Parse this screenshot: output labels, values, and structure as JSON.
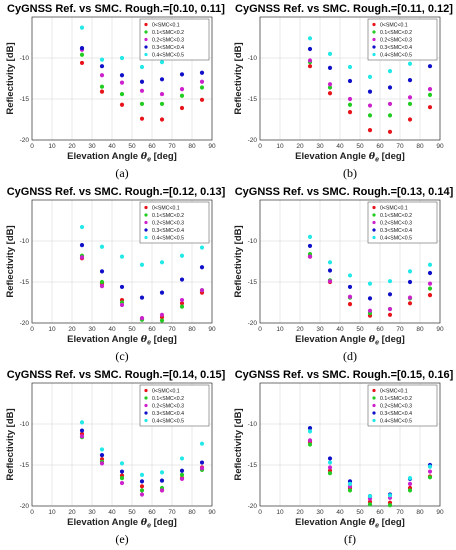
{
  "chart_data": [
    {
      "type": "scatter",
      "title": "CyGNSS Ref. vs SMC. Rough.=[0.10, 0.11]",
      "caption": "(a)",
      "xlabel_main": "Elevation Angle ",
      "xlabel_symbol": "θ",
      "xlabel_sub": "e",
      "xlabel_unit": " [deg]",
      "ylabel": "Reflectivity [dB]",
      "xlim": [
        0,
        90
      ],
      "ylim": [
        -20,
        -5
      ],
      "xticks": [
        "0",
        "10",
        "20",
        "30",
        "40",
        "50",
        "60",
        "70",
        "80",
        "90"
      ],
      "yticks": [
        "-20",
        "-15",
        "-10"
      ],
      "grid": true,
      "legend_position": "top-right",
      "x": [
        25,
        35,
        45,
        55,
        65,
        75,
        85
      ],
      "series": [
        {
          "name": "0<SMC<0.1",
          "color": "#e8141c",
          "values": [
            -10.6,
            -14.1,
            -15.7,
            -17.4,
            -17.5,
            -16.1,
            -15.1
          ]
        },
        {
          "name": "0.1<SMC<0.2",
          "color": "#22cc22",
          "values": [
            -9.6,
            -13.5,
            -14.4,
            -15.6,
            -15.6,
            -14.6,
            -13.6
          ]
        },
        {
          "name": "0.2<SMC<0.3",
          "color": "#cc22cc",
          "values": [
            -9.0,
            -12.1,
            -13.0,
            -14.0,
            -14.4,
            -13.8,
            -12.9
          ]
        },
        {
          "name": "0.3<SMC<0.4",
          "color": "#1010c8",
          "values": [
            -8.8,
            -11.0,
            -12.1,
            -12.9,
            -12.6,
            -12.0,
            -11.8
          ]
        },
        {
          "name": "0.4<SMC<0.5",
          "color": "#22e8e8",
          "values": [
            -6.3,
            -10.2,
            -10.0,
            -11.1,
            -10.5,
            -9.7,
            -9.6
          ]
        }
      ]
    },
    {
      "type": "scatter",
      "title": "CyGNSS Ref. vs SMC. Rough.=[0.11, 0.12]",
      "caption": "(b)",
      "xlabel_main": "Elevation Angle ",
      "xlabel_symbol": "θ",
      "xlabel_sub": "e",
      "xlabel_unit": " [deg]",
      "ylabel": "Reflectivity [dB]",
      "xlim": [
        0,
        90
      ],
      "ylim": [
        -20,
        -5
      ],
      "xticks": [
        "0",
        "10",
        "20",
        "30",
        "40",
        "50",
        "60",
        "70",
        "80",
        "90"
      ],
      "yticks": [
        "-20",
        "-15",
        "-10"
      ],
      "grid": true,
      "legend_position": "top-right",
      "x": [
        25,
        35,
        45,
        55,
        65,
        75,
        85
      ],
      "series": [
        {
          "name": "0<SMC<0.1",
          "color": "#e8141c",
          "values": [
            -11.0,
            -14.3,
            -16.6,
            -18.8,
            -19.0,
            -17.5,
            -16.0
          ]
        },
        {
          "name": "0.1<SMC<0.2",
          "color": "#22cc22",
          "values": [
            -10.5,
            -13.6,
            -15.7,
            -17.0,
            -17.0,
            -15.6,
            -14.5
          ]
        },
        {
          "name": "0.2<SMC<0.3",
          "color": "#cc22cc",
          "values": [
            -10.3,
            -13.2,
            -15.0,
            -15.8,
            -15.6,
            -14.8,
            -13.8
          ]
        },
        {
          "name": "0.3<SMC<0.4",
          "color": "#1010c8",
          "values": [
            -8.9,
            -11.2,
            -12.8,
            -14.1,
            -13.6,
            -12.7,
            -11.0
          ]
        },
        {
          "name": "0.4<SMC<0.5",
          "color": "#22e8e8",
          "values": [
            -7.6,
            -9.5,
            -11.1,
            -12.3,
            -11.6,
            -10.7,
            -9.4
          ]
        }
      ]
    },
    {
      "type": "scatter",
      "title": "CyGNSS Ref. vs SMC. Rough.=[0.12, 0.13]",
      "caption": "(c)",
      "xlabel_main": "Elevation Angle ",
      "xlabel_symbol": "θ",
      "xlabel_sub": "e",
      "xlabel_unit": " [deg]",
      "ylabel": "Reflectivity [dB]",
      "xlim": [
        0,
        90
      ],
      "ylim": [
        -20,
        -5
      ],
      "xticks": [
        "0",
        "10",
        "20",
        "30",
        "40",
        "50",
        "60",
        "70",
        "80",
        "90"
      ],
      "yticks": [
        "-20",
        "-15",
        "-10"
      ],
      "grid": true,
      "legend_position": "top-right",
      "x": [
        25,
        35,
        45,
        55,
        65,
        75,
        85
      ],
      "series": [
        {
          "name": "0<SMC<0.1",
          "color": "#e8141c",
          "values": [
            -12.1,
            -15.2,
            -17.2,
            -19.5,
            -19.3,
            -17.6,
            -16.3
          ]
        },
        {
          "name": "0.1<SMC<0.2",
          "color": "#22cc22",
          "values": [
            -11.8,
            -15.0,
            -17.5,
            -19.6,
            -19.7,
            -18.0,
            -16.0
          ]
        },
        {
          "name": "0.2<SMC<0.3",
          "color": "#cc22cc",
          "values": [
            -12.0,
            -15.5,
            -17.8,
            -19.4,
            -19.0,
            -17.2,
            -16.0
          ]
        },
        {
          "name": "0.3<SMC<0.4",
          "color": "#1010c8",
          "values": [
            -10.5,
            -13.7,
            -15.6,
            -16.9,
            -16.3,
            -14.7,
            -13.2
          ]
        },
        {
          "name": "0.4<SMC<0.5",
          "color": "#22e8e8",
          "values": [
            -8.3,
            -10.7,
            -11.9,
            -12.9,
            -12.6,
            -11.8,
            -10.8
          ]
        }
      ]
    },
    {
      "type": "scatter",
      "title": "CyGNSS Ref. vs SMC. Rough.=[0.13, 0.14]",
      "caption": "(d)",
      "xlabel_main": "Elevation Angle ",
      "xlabel_symbol": "θ",
      "xlabel_sub": "e",
      "xlabel_unit": " [deg]",
      "ylabel": "Reflectivity [dB]",
      "xlim": [
        0,
        90
      ],
      "ylim": [
        -20,
        -5
      ],
      "xticks": [
        "0",
        "10",
        "20",
        "30",
        "40",
        "50",
        "60",
        "70",
        "80",
        "90"
      ],
      "yticks": [
        "-20",
        "-15",
        "-10"
      ],
      "grid": true,
      "legend_position": "top-right",
      "x": [
        25,
        35,
        45,
        55,
        65,
        75,
        85
      ],
      "series": [
        {
          "name": "0<SMC<0.1",
          "color": "#e8141c",
          "values": [
            -11.9,
            -15.0,
            -17.7,
            -19.1,
            -19.0,
            -17.6,
            -16.6
          ]
        },
        {
          "name": "0.1<SMC<0.2",
          "color": "#22cc22",
          "values": [
            -11.6,
            -14.8,
            -16.9,
            -18.8,
            -18.3,
            -17.0,
            -15.8
          ]
        },
        {
          "name": "0.2<SMC<0.3",
          "color": "#cc22cc",
          "values": [
            -11.9,
            -14.9,
            -16.8,
            -18.5,
            -18.3,
            -16.9,
            -15.2
          ]
        },
        {
          "name": "0.3<SMC<0.4",
          "color": "#1010c8",
          "values": [
            -10.6,
            -13.6,
            -15.6,
            -17.0,
            -16.5,
            -15.0,
            -13.9
          ]
        },
        {
          "name": "0.4<SMC<0.5",
          "color": "#22e8e8",
          "values": [
            -9.5,
            -12.6,
            -14.2,
            -15.2,
            -14.9,
            -13.7,
            -12.9
          ]
        }
      ]
    },
    {
      "type": "scatter",
      "title": "CyGNSS Ref. vs SMC. Rough.=[0.14, 0.15]",
      "caption": "(e)",
      "xlabel_main": "Elevation Angle ",
      "xlabel_symbol": "θ",
      "xlabel_sub": "e",
      "xlabel_unit": " [deg]",
      "ylabel": "Reflectivity [dB]",
      "xlim": [
        0,
        90
      ],
      "ylim": [
        -20,
        -5
      ],
      "xticks": [
        "0",
        "10",
        "20",
        "30",
        "40",
        "50",
        "60",
        "70",
        "80",
        "90"
      ],
      "yticks": [
        "-20",
        "-15",
        "-10"
      ],
      "grid": true,
      "legend_position": "top-right",
      "x": [
        25,
        35,
        45,
        55,
        65,
        75,
        85
      ],
      "series": [
        {
          "name": "0<SMC<0.1",
          "color": "#e8141c",
          "values": [
            -11.2,
            -14.3,
            -16.3,
            -17.6,
            -18.1,
            -16.6,
            -15.3
          ]
        },
        {
          "name": "0.1<SMC<0.2",
          "color": "#22cc22",
          "values": [
            -11.6,
            -14.6,
            -16.6,
            -18.1,
            -17.8,
            -16.2,
            -15.6
          ]
        },
        {
          "name": "0.2<SMC<0.3",
          "color": "#cc22cc",
          "values": [
            -11.5,
            -14.8,
            -17.2,
            -18.6,
            -18.1,
            -16.7,
            -15.4
          ]
        },
        {
          "name": "0.3<SMC<0.4",
          "color": "#1010c8",
          "values": [
            -10.8,
            -13.8,
            -15.8,
            -17.0,
            -16.9,
            -15.7,
            -14.7
          ]
        },
        {
          "name": "0.4<SMC<0.5",
          "color": "#22e8e8",
          "values": [
            -9.8,
            -13.1,
            -14.8,
            -16.2,
            -15.9,
            -14.2,
            -12.4
          ]
        }
      ]
    },
    {
      "type": "scatter",
      "title": "CyGNSS Ref. vs SMC. Rough.=[0.15, 0.16]",
      "caption": "(f)",
      "xlabel_main": "Elevation Angle ",
      "xlabel_symbol": "θ",
      "xlabel_sub": "e",
      "xlabel_unit": " [deg]",
      "ylabel": "Reflectivity [dB]",
      "xlim": [
        0,
        90
      ],
      "ylim": [
        -20,
        -5
      ],
      "xticks": [
        "0",
        "10",
        "20",
        "30",
        "40",
        "50",
        "60",
        "70",
        "80",
        "90"
      ],
      "yticks": [
        "-20",
        "-15",
        "-10"
      ],
      "grid": true,
      "legend_position": "top-right",
      "x": [
        25,
        35,
        45,
        55,
        65,
        75,
        85
      ],
      "series": [
        {
          "name": "0<SMC<0.1",
          "color": "#e8141c",
          "values": [
            -12.2,
            -15.7,
            -17.8,
            -19.5,
            -19.6,
            -17.8,
            -16.4
          ]
        },
        {
          "name": "0.1<SMC<0.2",
          "color": "#22cc22",
          "values": [
            -12.5,
            -16.0,
            -18.1,
            -19.8,
            -19.9,
            -18.1,
            -16.5
          ]
        },
        {
          "name": "0.2<SMC<0.3",
          "color": "#cc22cc",
          "values": [
            -12.0,
            -15.3,
            -17.6,
            -19.1,
            -19.0,
            -17.3,
            -15.8
          ]
        },
        {
          "name": "0.3<SMC<0.4",
          "color": "#1010c8",
          "values": [
            -10.5,
            -14.2,
            -17.0,
            -18.8,
            -18.6,
            -16.7,
            -15.0
          ]
        },
        {
          "name": "0.4<SMC<0.5",
          "color": "#22e8e8",
          "values": [
            -10.9,
            -14.7,
            -17.3,
            -18.8,
            -18.7,
            -16.6,
            -15.2
          ]
        }
      ]
    }
  ]
}
